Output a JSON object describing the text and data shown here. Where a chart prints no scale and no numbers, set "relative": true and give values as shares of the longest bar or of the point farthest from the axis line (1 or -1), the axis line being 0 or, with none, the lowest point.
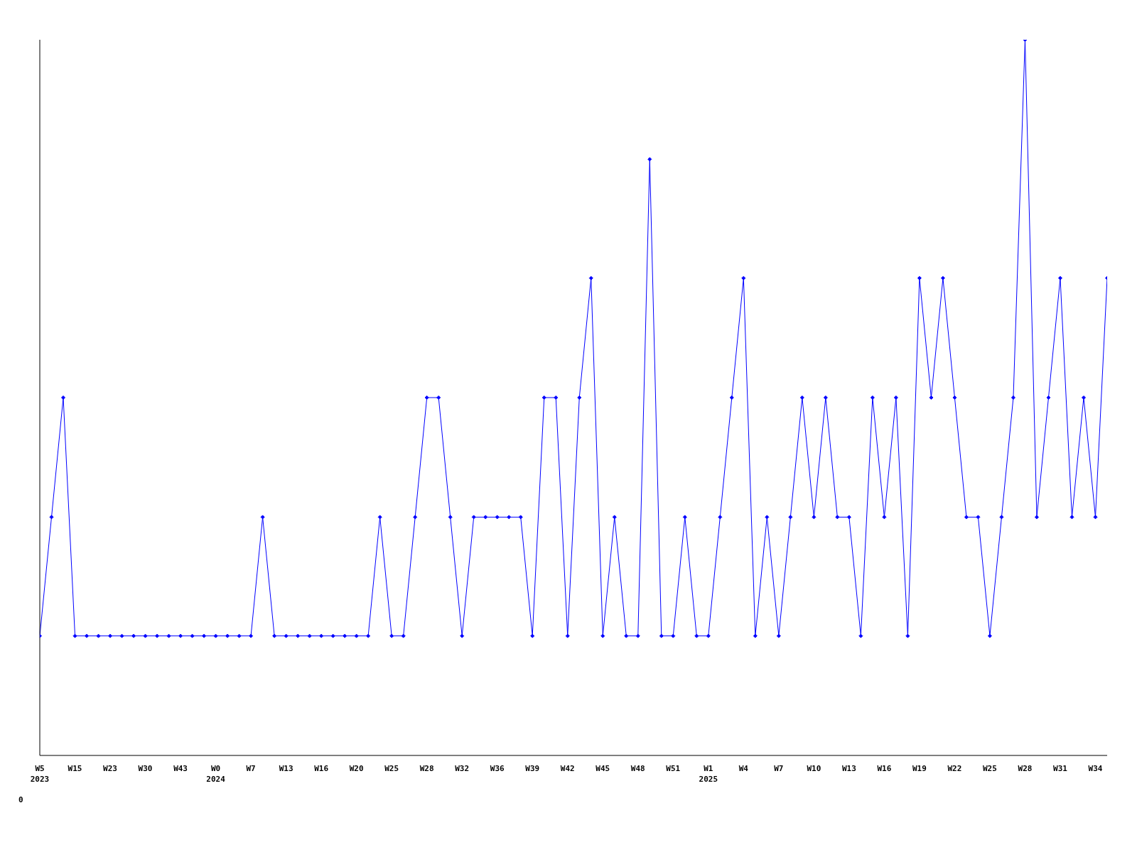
{
  "chart_data": {
    "type": "line",
    "relative": true,
    "marker": "diamond",
    "grid": false,
    "legend": false,
    "annotations": [
      "0"
    ],
    "categories": [
      "W5\n2023",
      null,
      null,
      "W15",
      null,
      null,
      "W23",
      null,
      null,
      "W30",
      null,
      null,
      "W43",
      null,
      null,
      "W0\n2024",
      null,
      null,
      "W7",
      null,
      null,
      "W13",
      null,
      null,
      "W16",
      null,
      null,
      "W20",
      null,
      null,
      "W25",
      null,
      null,
      "W28",
      null,
      null,
      "W32",
      null,
      null,
      "W36",
      null,
      null,
      "W39",
      null,
      null,
      "W42",
      null,
      null,
      "W45",
      null,
      null,
      "W48",
      null,
      null,
      "W51",
      null,
      null,
      "W1\n2025",
      null,
      null,
      "W4",
      null,
      null,
      "W7",
      null,
      null,
      "W10",
      null,
      null,
      "W13",
      null,
      null,
      "W16",
      null,
      null,
      "W19",
      null,
      null,
      "W22",
      null,
      null,
      "W25",
      null,
      null,
      "W28",
      null,
      null,
      "W31",
      null,
      null,
      "W34",
      null
    ],
    "series": [
      {
        "color": "#0000ff",
        "values": [
          0.167,
          0.333,
          0.5,
          0.167,
          0.167,
          0.167,
          0.167,
          0.167,
          0.167,
          0.167,
          0.167,
          0.167,
          0.167,
          0.167,
          0.167,
          0.167,
          0.167,
          0.167,
          0.167,
          0.333,
          0.167,
          0.167,
          0.167,
          0.167,
          0.167,
          0.167,
          0.167,
          0.167,
          0.167,
          0.333,
          0.167,
          0.167,
          0.333,
          0.5,
          0.5,
          0.333,
          0.167,
          0.333,
          0.333,
          0.333,
          0.333,
          0.333,
          0.167,
          0.5,
          0.5,
          0.167,
          0.5,
          0.667,
          0.167,
          0.333,
          0.167,
          0.167,
          0.833,
          0.167,
          0.167,
          0.333,
          0.167,
          0.167,
          0.333,
          0.5,
          0.667,
          0.167,
          0.333,
          0.167,
          0.333,
          0.5,
          0.333,
          0.5,
          0.333,
          0.333,
          0.167,
          0.5,
          0.333,
          0.5,
          0.167,
          0.667,
          0.5,
          0.667,
          0.5,
          0.333,
          0.333,
          0.167,
          0.333,
          0.5,
          1,
          0.333,
          0.5,
          0.667,
          0.333,
          0.5,
          0.333,
          0.667
        ]
      }
    ]
  }
}
